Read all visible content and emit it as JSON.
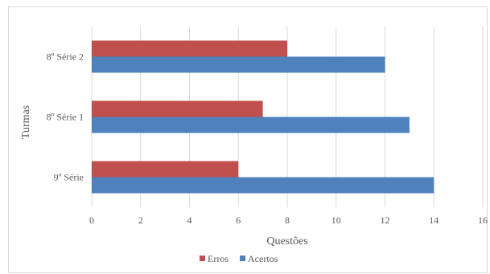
{
  "chart_data": {
    "type": "bar",
    "orientation": "horizontal",
    "categories": [
      "9º Série",
      "8º Série 1",
      "8º Série 2"
    ],
    "series": [
      {
        "name": "Erros",
        "values": [
          6,
          7,
          8
        ],
        "color": "#c0504d"
      },
      {
        "name": "Acertos",
        "values": [
          14,
          13,
          12
        ],
        "color": "#4f81bd"
      }
    ],
    "xlabel": "Questões",
    "ylabel": "Turmas",
    "xlim": [
      0,
      16
    ],
    "xticks": [
      0,
      2,
      4,
      6,
      8,
      10,
      12,
      14,
      16
    ],
    "grid": "vertical",
    "legend_position": "bottom"
  }
}
